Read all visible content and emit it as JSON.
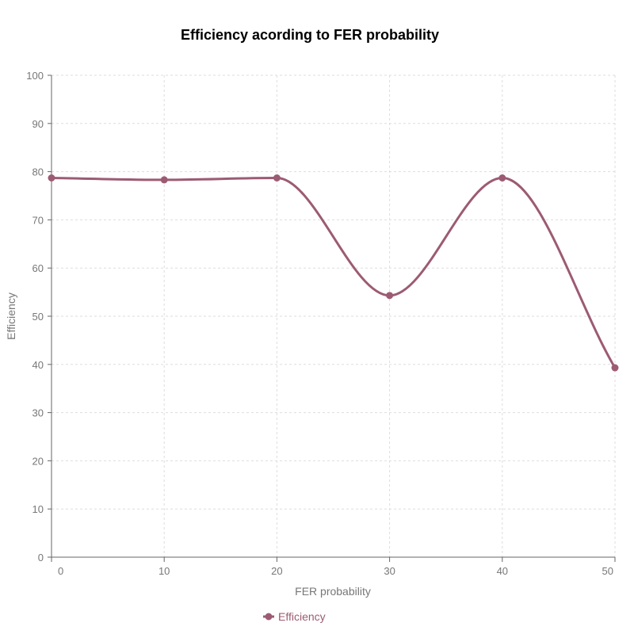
{
  "chart_data": {
    "type": "line",
    "title": "Efficiency acording to FER probability",
    "xlabel": "FER probability",
    "ylabel": "Efficiency",
    "x": [
      0,
      10,
      20,
      30,
      40,
      50
    ],
    "series": [
      {
        "name": "Efficiency",
        "values": [
          78.7,
          78.3,
          78.7,
          54.3,
          78.7,
          39.3
        ],
        "color": "#9c5b73"
      }
    ],
    "xlim": [
      0,
      50
    ],
    "ylim": [
      0,
      100
    ],
    "x_ticks": [
      "0",
      "10",
      "20",
      "30",
      "40",
      "50"
    ],
    "y_ticks": [
      "0",
      "10",
      "20",
      "30",
      "40",
      "50",
      "60",
      "70",
      "80",
      "90",
      "100"
    ],
    "grid": true,
    "smooth": true,
    "legend": "bottom-center"
  }
}
